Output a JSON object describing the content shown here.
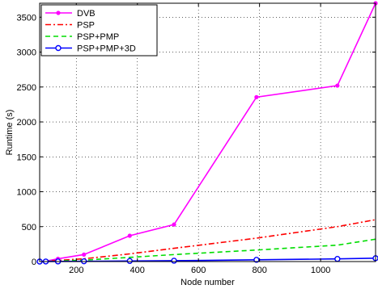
{
  "chart_data": {
    "type": "line",
    "title": "",
    "xlabel": "Node number",
    "ylabel": "Runtime (s)",
    "xlim": [
      80,
      1180
    ],
    "ylim": [
      0,
      3700
    ],
    "xticks": [
      200,
      400,
      600,
      800,
      1000
    ],
    "yticks": [
      0,
      500,
      1000,
      1500,
      2000,
      2500,
      3000,
      3500
    ],
    "grid": "dotted",
    "legend_position": "top-left",
    "series": [
      {
        "name": "DVB",
        "color": "#ff00ff",
        "line_style": "solid",
        "marker": "dot",
        "x": [
          80,
          100,
          140,
          225,
          375,
          520,
          790,
          1055,
          1180
        ],
        "y": [
          0,
          5,
          40,
          100,
          370,
          530,
          2355,
          2520,
          3700
        ]
      },
      {
        "name": "PSP",
        "color": "#ff0000",
        "line_style": "dashdot",
        "marker": "none",
        "x": [
          80,
          225,
          375,
          520,
          790,
          1055,
          1180
        ],
        "y": [
          0,
          40,
          110,
          190,
          335,
          500,
          600
        ]
      },
      {
        "name": "PSP+PMP",
        "color": "#00dd00",
        "line_style": "dashed",
        "marker": "none",
        "x": [
          80,
          225,
          375,
          520,
          790,
          1055,
          1180
        ],
        "y": [
          0,
          20,
          60,
          100,
          165,
          235,
          320
        ]
      },
      {
        "name": "PSP+PMP+3D",
        "color": "#0000ff",
        "line_style": "solid",
        "marker": "circle",
        "x": [
          80,
          100,
          140,
          225,
          375,
          520,
          790,
          1055,
          1180
        ],
        "y": [
          0,
          1,
          2,
          4,
          8,
          12,
          25,
          38,
          48
        ]
      }
    ]
  }
}
